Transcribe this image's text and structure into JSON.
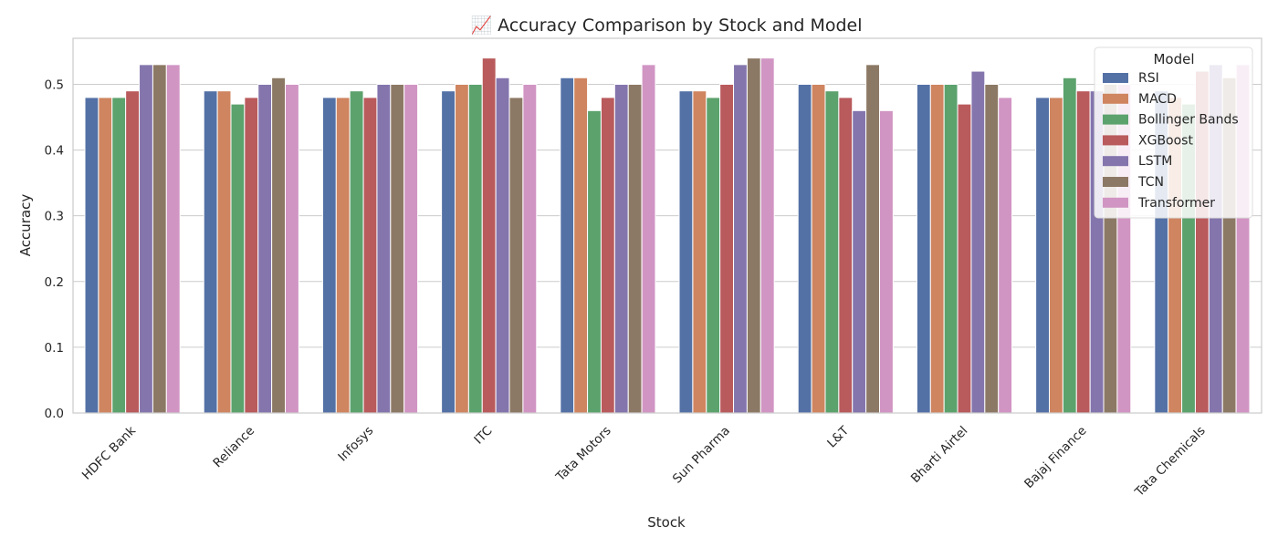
{
  "chart_data": {
    "type": "bar",
    "title": "📈 Accuracy Comparison by Stock and Model",
    "xlabel": "Stock",
    "ylabel": "Accuracy",
    "ylim": [
      0,
      0.57
    ],
    "yticks": [
      "0.0",
      "0.1",
      "0.2",
      "0.3",
      "0.4",
      "0.5"
    ],
    "grid": true,
    "legend": {
      "title": "Model",
      "placement": "top-right"
    },
    "categories": [
      "HDFC Bank",
      "Reliance",
      "Infosys",
      "ITC",
      "Tata Motors",
      "Sun Pharma",
      "L&T",
      "Bharti Airtel",
      "Bajaj Finance",
      "Tata Chemicals"
    ],
    "series": [
      {
        "name": "RSI",
        "color": "#5471a6",
        "values": [
          0.48,
          0.49,
          0.48,
          0.49,
          0.51,
          0.49,
          0.5,
          0.5,
          0.48,
          0.49
        ]
      },
      {
        "name": "MACD",
        "color": "#cf8560",
        "values": [
          0.48,
          0.49,
          0.48,
          0.5,
          0.51,
          0.49,
          0.5,
          0.5,
          0.48,
          0.48
        ]
      },
      {
        "name": "Bollinger Bands",
        "color": "#5ca26d",
        "values": [
          0.48,
          0.47,
          0.49,
          0.5,
          0.46,
          0.48,
          0.49,
          0.5,
          0.51,
          0.47
        ]
      },
      {
        "name": "XGBoost",
        "color": "#b95a5c",
        "values": [
          0.49,
          0.48,
          0.48,
          0.54,
          0.48,
          0.5,
          0.48,
          0.47,
          0.49,
          0.52
        ]
      },
      {
        "name": "LSTM",
        "color": "#8475ad",
        "values": [
          0.53,
          0.5,
          0.5,
          0.51,
          0.5,
          0.53,
          0.46,
          0.52,
          0.49,
          0.53
        ]
      },
      {
        "name": "TCN",
        "color": "#8c7965",
        "values": [
          0.53,
          0.51,
          0.5,
          0.48,
          0.5,
          0.54,
          0.53,
          0.5,
          0.5,
          0.51
        ]
      },
      {
        "name": "Transformer",
        "color": "#d195c3",
        "values": [
          0.53,
          0.5,
          0.5,
          0.5,
          0.53,
          0.54,
          0.46,
          0.48,
          0.5,
          0.53
        ]
      }
    ]
  }
}
